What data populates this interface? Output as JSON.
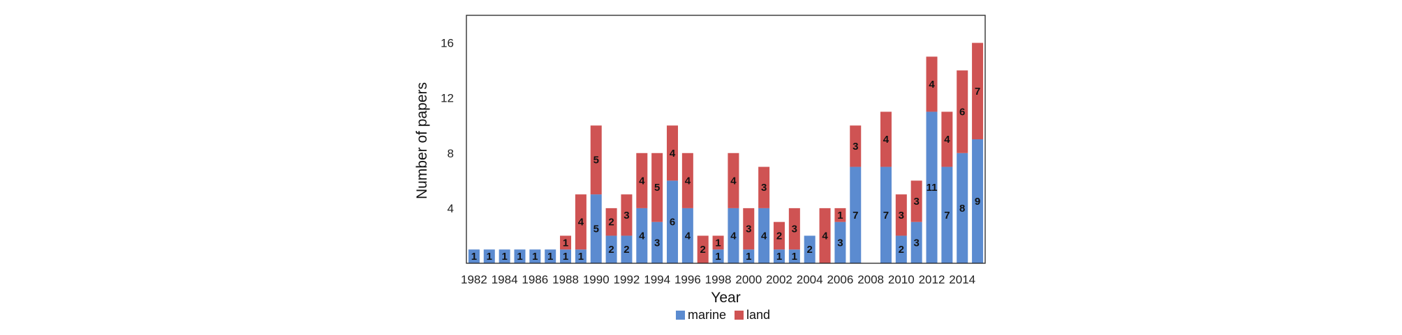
{
  "chart_data": {
    "type": "bar",
    "stacked": true,
    "title": "",
    "xlabel": "Year",
    "ylabel": "Number of papers",
    "ylim": [
      0,
      18
    ],
    "yticks": [
      4,
      8,
      12,
      16
    ],
    "grid": false,
    "legend_position": "bottom",
    "categories": [
      "1982",
      "1983",
      "1984",
      "1985",
      "1986",
      "1987",
      "1988",
      "1989",
      "1990",
      "1991",
      "1992",
      "1993",
      "1994",
      "1995",
      "1996",
      "1997",
      "1998",
      "1999",
      "2000",
      "2001",
      "2002",
      "2003",
      "2004",
      "2005",
      "2006",
      "2007",
      "2008",
      "2009",
      "2010",
      "2011",
      "2012",
      "2013",
      "2014",
      "2015"
    ],
    "xtick_labels": [
      "1982",
      "1984",
      "1986",
      "1988",
      "1990",
      "1992",
      "1994",
      "1996",
      "1998",
      "2000",
      "2002",
      "2004",
      "2006",
      "2008",
      "2010",
      "2012",
      "2014"
    ],
    "series": [
      {
        "name": "marine",
        "color": "#5b8bd0",
        "values": [
          1,
          1,
          1,
          1,
          1,
          1,
          1,
          1,
          5,
          2,
          2,
          4,
          3,
          6,
          4,
          0,
          1,
          4,
          1,
          4,
          1,
          1,
          2,
          0,
          3,
          7,
          0,
          7,
          2,
          3,
          11,
          7,
          8,
          9
        ]
      },
      {
        "name": "land",
        "color": "#cf5353",
        "values": [
          0,
          0,
          0,
          0,
          0,
          0,
          1,
          4,
          5,
          2,
          3,
          4,
          5,
          4,
          4,
          2,
          1,
          4,
          3,
          3,
          2,
          3,
          0,
          4,
          1,
          3,
          0,
          4,
          3,
          3,
          4,
          4,
          6,
          7
        ]
      }
    ],
    "labels": {
      "marine": [
        "1",
        "1",
        "1",
        "1",
        "1",
        "1",
        "1",
        "1",
        "5",
        "2",
        "2",
        "4",
        "3",
        "6",
        "4",
        "",
        "1",
        "4",
        "1",
        "4",
        "1",
        "1",
        "2",
        "",
        "3",
        "7",
        "",
        "7",
        "2",
        "3",
        "11",
        "7",
        "8",
        "9"
      ],
      "land": [
        "",
        "",
        "",
        "",
        "",
        "",
        "1",
        "4",
        "5",
        "2",
        "3",
        "4",
        "5",
        "4",
        "4",
        "2",
        "1",
        "4",
        "3",
        "3",
        "2",
        "3",
        "",
        "4",
        "1",
        "3",
        "",
        "4",
        "3",
        "3",
        "4",
        "4",
        "6",
        "7"
      ]
    }
  }
}
